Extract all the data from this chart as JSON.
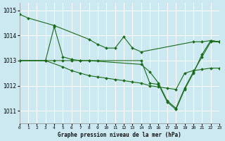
{
  "title": "Graphe pression niveau de la mer (hPa)",
  "bg_color": "#cce8f0",
  "grid_color": "#ffffff",
  "line_color": "#1a6b1a",
  "xlim": [
    0,
    23
  ],
  "ylim": [
    1010.5,
    1015.3
  ],
  "yticks": [
    1011,
    1012,
    1013,
    1014,
    1015
  ],
  "xticks": [
    0,
    1,
    2,
    3,
    4,
    5,
    6,
    7,
    8,
    9,
    10,
    11,
    12,
    13,
    14,
    15,
    16,
    17,
    18,
    19,
    20,
    21,
    22,
    23
  ],
  "series": [
    {
      "x": [
        0,
        1,
        4,
        8,
        9,
        10,
        11,
        12,
        13,
        14,
        20,
        21,
        22,
        23
      ],
      "y": [
        1014.85,
        1014.7,
        1014.4,
        1013.85,
        1013.65,
        1013.5,
        1013.5,
        1013.95,
        1013.5,
        1013.35,
        1013.75,
        1013.75,
        1013.8,
        1013.75
      ]
    },
    {
      "x": [
        0,
        3,
        4,
        5,
        6,
        7,
        8,
        9,
        14,
        15,
        16,
        17,
        18,
        19,
        20,
        21,
        22,
        23
      ],
      "y": [
        1013.0,
        1013.0,
        1014.35,
        1013.15,
        1013.05,
        1013.0,
        1013.0,
        1013.0,
        1013.0,
        1012.1,
        1012.05,
        1011.35,
        1011.05,
        1011.85,
        1012.5,
        1013.25,
        1013.8,
        1013.75
      ]
    },
    {
      "x": [
        0,
        3,
        4,
        5,
        6,
        7,
        8,
        14,
        15,
        16,
        17,
        18,
        19,
        20,
        21,
        22,
        23
      ],
      "y": [
        1013.0,
        1013.0,
        1013.0,
        1013.0,
        1013.0,
        1013.0,
        1013.0,
        1012.85,
        1012.55,
        1012.1,
        1011.4,
        1011.1,
        1011.9,
        1012.55,
        1013.15,
        1013.75,
        1013.75
      ]
    },
    {
      "x": [
        0,
        3,
        5,
        6,
        7,
        8,
        9,
        10,
        11,
        12,
        13,
        14,
        15,
        16,
        17,
        18,
        19,
        20,
        21,
        22,
        23
      ],
      "y": [
        1013.0,
        1013.0,
        1012.75,
        1012.6,
        1012.5,
        1012.4,
        1012.35,
        1012.3,
        1012.25,
        1012.2,
        1012.15,
        1012.1,
        1012.0,
        1011.95,
        1011.9,
        1011.85,
        1012.5,
        1012.6,
        1012.65,
        1012.7,
        1012.7
      ]
    }
  ]
}
